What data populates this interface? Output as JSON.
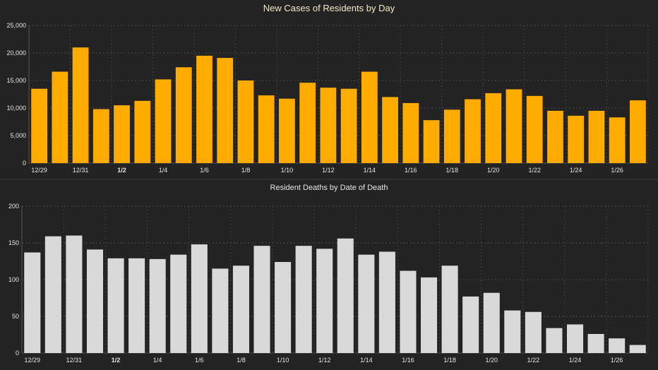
{
  "charts": [
    {
      "id": "cases",
      "title": "New Cases of Residents by Day",
      "color": "#ffab00",
      "ylim": [
        0,
        25000
      ],
      "yticks": [
        0,
        5000,
        10000,
        15000,
        20000,
        25000
      ],
      "ytick_labels": [
        "0",
        "5,000",
        "10,000",
        "15,000",
        "20,000",
        "25,000"
      ],
      "xtick_labels": [
        "12/29",
        "12/31",
        "1/2",
        "1/4",
        "1/6",
        "1/8",
        "1/10",
        "1/12",
        "1/14",
        "1/16",
        "1/18",
        "1/20",
        "1/22",
        "1/24",
        "1/26"
      ],
      "bold_xtick": "1/2"
    },
    {
      "id": "deaths",
      "title": "Resident Deaths by Date of Death",
      "color": "#d9d9d9",
      "ylim": [
        0,
        200
      ],
      "yticks": [
        0,
        50,
        100,
        150,
        200
      ],
      "ytick_labels": [
        "0",
        "50",
        "100",
        "150",
        "200"
      ],
      "xtick_labels": [
        "12/29",
        "12/31",
        "1/2",
        "1/4",
        "1/6",
        "1/8",
        "1/10",
        "1/12",
        "1/14",
        "1/16",
        "1/18",
        "1/20",
        "1/22",
        "1/24",
        "1/26"
      ],
      "bold_xtick": "1/2"
    }
  ],
  "chart_data": [
    {
      "type": "bar",
      "title": "New Cases of Residents by Day",
      "xlabel": "",
      "ylabel": "",
      "ylim": [
        0,
        25000
      ],
      "grid": true,
      "categories": [
        "12/29",
        "12/30",
        "12/31",
        "1/1",
        "1/2",
        "1/3",
        "1/4",
        "1/5",
        "1/6",
        "1/7",
        "1/8",
        "1/9",
        "1/10",
        "1/11",
        "1/12",
        "1/13",
        "1/14",
        "1/15",
        "1/16",
        "1/17",
        "1/18",
        "1/19",
        "1/20",
        "1/21",
        "1/22",
        "1/23",
        "1/24",
        "1/25",
        "1/26",
        "1/27"
      ],
      "values": [
        13500,
        16600,
        21000,
        9800,
        10500,
        11300,
        15200,
        17400,
        19500,
        19100,
        15000,
        12300,
        11700,
        14600,
        13700,
        13500,
        16600,
        12000,
        10900,
        7800,
        9700,
        11600,
        12700,
        13400,
        12200,
        9500,
        8600,
        9500,
        8300,
        11400
      ]
    },
    {
      "type": "bar",
      "title": "Resident Deaths by Date of Death",
      "xlabel": "",
      "ylabel": "",
      "ylim": [
        0,
        200
      ],
      "grid": true,
      "categories": [
        "12/29",
        "12/30",
        "12/31",
        "1/1",
        "1/2",
        "1/3",
        "1/4",
        "1/5",
        "1/6",
        "1/7",
        "1/8",
        "1/9",
        "1/10",
        "1/11",
        "1/12",
        "1/13",
        "1/14",
        "1/15",
        "1/16",
        "1/17",
        "1/18",
        "1/19",
        "1/20",
        "1/21",
        "1/22",
        "1/23",
        "1/24",
        "1/25",
        "1/26",
        "1/27"
      ],
      "values": [
        137,
        159,
        160,
        141,
        129,
        129,
        128,
        134,
        148,
        115,
        119,
        146,
        124,
        146,
        142,
        156,
        134,
        138,
        112,
        103,
        119,
        77,
        82,
        58,
        56,
        34,
        39,
        26,
        20,
        11
      ]
    }
  ]
}
